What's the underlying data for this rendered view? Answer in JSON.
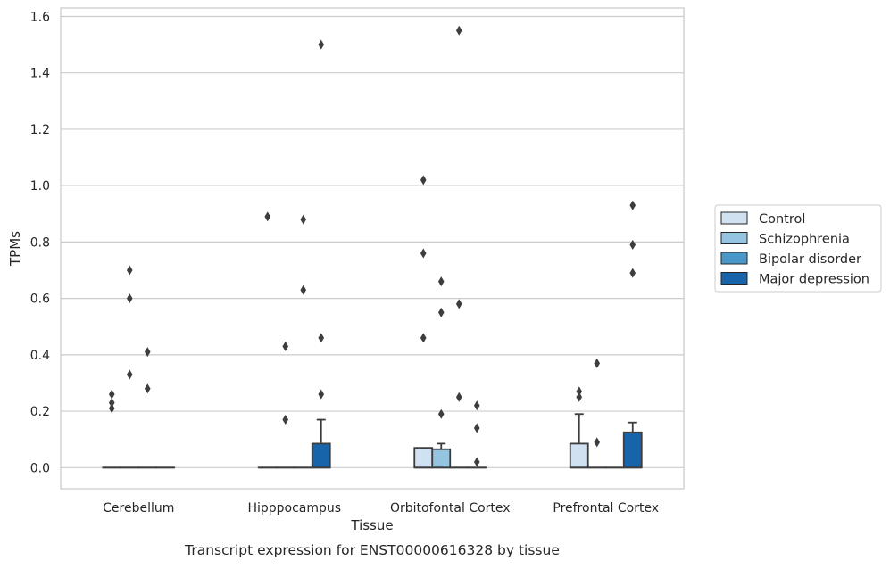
{
  "chart_data": {
    "type": "box",
    "title": "",
    "caption": "Transcript expression for ENST00000616328 by tissue",
    "xlabel": "Tissue",
    "ylabel": "TPMs",
    "categories": [
      "Cerebellum",
      "Hipppocampus",
      "Orbitofontal Cortex",
      "Prefrontal Cortex"
    ],
    "ylim": [
      -0.075,
      1.63
    ],
    "yticks": [
      "0.0",
      "0.2",
      "0.4",
      "0.6",
      "0.8",
      "1.0",
      "1.2",
      "1.4",
      "1.6"
    ],
    "grid": true,
    "legend_position": "right",
    "series": [
      {
        "name": "Control",
        "color": "#d0e1f2",
        "boxes": [
          {
            "q1": 0,
            "median": 0,
            "q3": 0,
            "whisker_low": 0,
            "whisker_high": 0,
            "outliers": [
              0.26,
              0.23,
              0.21
            ]
          },
          {
            "q1": 0,
            "median": 0,
            "q3": 0,
            "whisker_low": 0,
            "whisker_high": 0,
            "outliers": [
              0.89
            ]
          },
          {
            "q1": 0,
            "median": 0,
            "q3": 0.07,
            "whisker_low": 0,
            "whisker_high": 0.07,
            "outliers": [
              1.02,
              0.76,
              0.46
            ]
          },
          {
            "q1": 0,
            "median": 0,
            "q3": 0.085,
            "whisker_low": 0,
            "whisker_high": 0.19,
            "outliers": [
              0.27,
              0.25
            ]
          }
        ]
      },
      {
        "name": "Schizophrenia",
        "color": "#94c4df",
        "boxes": [
          {
            "q1": 0,
            "median": 0,
            "q3": 0,
            "whisker_low": 0,
            "whisker_high": 0,
            "outliers": [
              0.7,
              0.6,
              0.33
            ]
          },
          {
            "q1": 0,
            "median": 0,
            "q3": 0,
            "whisker_low": 0,
            "whisker_high": 0,
            "outliers": [
              0.43,
              0.17
            ]
          },
          {
            "q1": 0,
            "median": 0,
            "q3": 0.065,
            "whisker_low": 0,
            "whisker_high": 0.085,
            "outliers": [
              0.66,
              0.55,
              0.19
            ]
          },
          {
            "q1": 0,
            "median": 0,
            "q3": 0,
            "whisker_low": 0,
            "whisker_high": 0,
            "outliers": [
              0.37,
              0.09
            ]
          }
        ]
      },
      {
        "name": "Bipolar disorder",
        "color": "#4a98c9",
        "boxes": [
          {
            "q1": 0,
            "median": 0,
            "q3": 0,
            "whisker_low": 0,
            "whisker_high": 0,
            "outliers": [
              0.41,
              0.28
            ]
          },
          {
            "q1": 0,
            "median": 0,
            "q3": 0,
            "whisker_low": 0,
            "whisker_high": 0,
            "outliers": [
              0.88,
              0.63
            ]
          },
          {
            "q1": 0,
            "median": 0,
            "q3": 0,
            "whisker_low": 0,
            "whisker_high": 0,
            "outliers": [
              1.55,
              0.58,
              0.25
            ]
          },
          {
            "q1": 0,
            "median": 0,
            "q3": 0,
            "whisker_low": 0,
            "whisker_high": 0,
            "outliers": []
          }
        ]
      },
      {
        "name": "Major depression",
        "color": "#1764ab",
        "boxes": [
          {
            "q1": 0,
            "median": 0,
            "q3": 0,
            "whisker_low": 0,
            "whisker_high": 0,
            "outliers": []
          },
          {
            "q1": 0,
            "median": 0,
            "q3": 0.085,
            "whisker_low": 0,
            "whisker_high": 0.17,
            "outliers": [
              1.5,
              0.46,
              0.26
            ]
          },
          {
            "q1": 0,
            "median": 0,
            "q3": 0,
            "whisker_low": 0,
            "whisker_high": 0,
            "outliers": [
              0.22,
              0.14,
              0.02
            ]
          },
          {
            "q1": 0,
            "median": 0,
            "q3": 0.125,
            "whisker_low": 0,
            "whisker_high": 0.16,
            "outliers": [
              0.93,
              0.79,
              0.69
            ]
          }
        ]
      }
    ]
  }
}
